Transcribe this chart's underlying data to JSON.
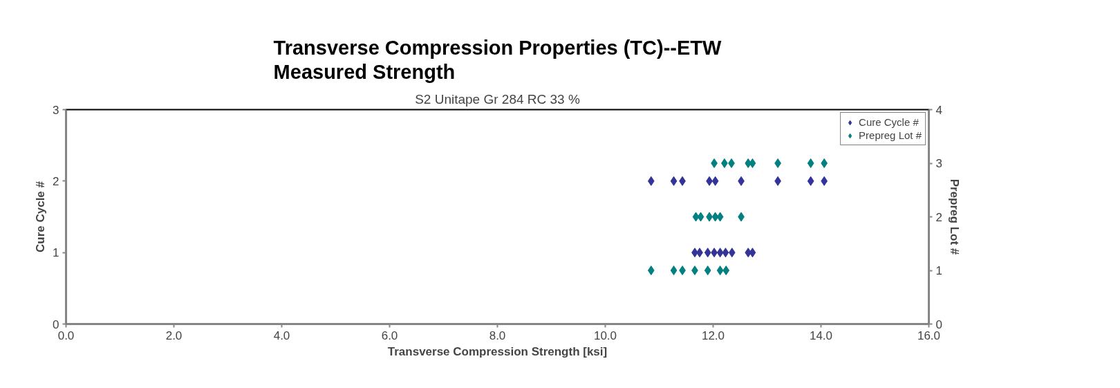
{
  "chart_data": {
    "type": "scatter",
    "title": "Transverse Compression Properties (TC)--ETW\nMeasured Strength",
    "subtitle": "S2 Unitape Gr 284 RC 33 %",
    "xlabel": "Transverse Compression Strength [ksi]",
    "ylabel": "Cure Cycle #",
    "y2label": "Prepreg Lot #",
    "xlim": [
      0,
      16
    ],
    "xticks": [
      {
        "value": 0,
        "label": "0.0"
      },
      {
        "value": 2,
        "label": "2.0"
      },
      {
        "value": 4,
        "label": "4.0"
      },
      {
        "value": 6,
        "label": "6.0"
      },
      {
        "value": 8,
        "label": "8.0"
      },
      {
        "value": 10,
        "label": "10.0"
      },
      {
        "value": 12,
        "label": "12.0"
      },
      {
        "value": 14,
        "label": "14.0"
      },
      {
        "value": 16,
        "label": "16.0"
      }
    ],
    "ylim": [
      0,
      3
    ],
    "yticks": [
      0,
      1,
      2,
      3
    ],
    "y2lim": [
      0,
      4
    ],
    "y2ticks": [
      0,
      1,
      2,
      3,
      4
    ],
    "marker": "diamond",
    "legend": "top right",
    "grid": false,
    "series": [
      {
        "name": "Cure Cycle #",
        "color": "#333399",
        "x": [
          10.85,
          11.27,
          11.43,
          11.93,
          12.04,
          12.52,
          13.2,
          13.81,
          14.06,
          11.66,
          11.75,
          11.9,
          12.02,
          12.13,
          12.23,
          12.35,
          12.65,
          12.73
        ],
        "values": [
          2,
          2,
          2,
          2,
          2,
          2,
          2,
          2,
          2,
          1,
          1,
          1,
          1,
          1,
          1,
          1,
          1,
          1
        ]
      },
      {
        "name": "Prepreg Lot #",
        "color": "#008080",
        "axis": "y2",
        "x": [
          12.02,
          12.21,
          12.34,
          12.65,
          12.73,
          13.2,
          13.81,
          14.06,
          11.68,
          11.77,
          11.93,
          12.04,
          12.13,
          12.52,
          10.85,
          11.27,
          11.43,
          11.66,
          11.9,
          12.13,
          12.24
        ],
        "values": [
          3,
          3,
          3,
          3,
          3,
          3,
          3,
          3,
          2,
          2,
          2,
          2,
          2,
          2,
          1,
          1,
          1,
          1,
          1,
          1,
          1
        ]
      }
    ]
  }
}
